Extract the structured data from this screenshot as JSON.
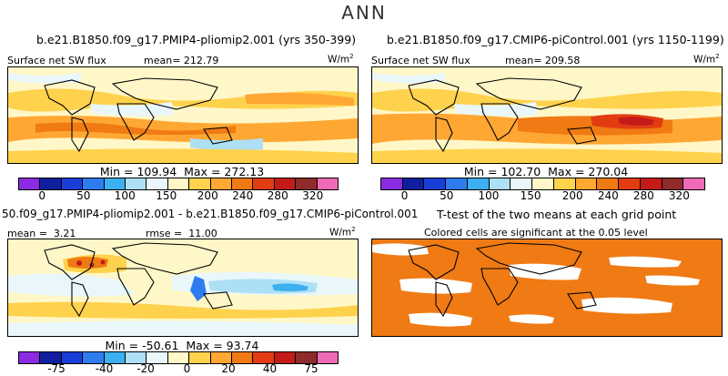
{
  "season": "ANN",
  "panels": {
    "top_left": {
      "case": "b.e21.B1850.f09_g17.PMIP4-pliomip2.001 (yrs 350-399)",
      "variable": "Surface net SW flux",
      "mean_label": "mean=",
      "mean": "212.79",
      "units_base": "W/m",
      "units_exp": "2",
      "min_label": "Min =",
      "min": "109.94",
      "max_label": "Max =",
      "max": "272.13"
    },
    "top_right": {
      "case": "b.e21.B1850.f09_g17.CMIP6-piControl.001 (yrs 1150-1199)",
      "variable": "Surface net SW flux",
      "mean_label": "mean=",
      "mean": "209.58",
      "units_base": "W/m",
      "units_exp": "2",
      "min_label": "Min =",
      "min": "102.70",
      "max_label": "Max =",
      "max": "270.04"
    },
    "bottom_left": {
      "case": "50.f09_g17.PMIP4-pliomip2.001 - b.e21.B1850.f09_g17.CMIP6-piControl.001",
      "mean_label": "mean =",
      "mean": "3.21",
      "rmse_label": "rmse =",
      "rmse": "11.00",
      "units_base": "W/m",
      "units_exp": "2",
      "min_label": "Min =",
      "min": "-50.61",
      "max_label": "Max =",
      "max": "93.74"
    },
    "bottom_right": {
      "title": "T-test of the two means at each grid point",
      "subtitle": "Colored cells are significant at the 0.05 level"
    }
  },
  "colorbar_abs": {
    "ticks": [
      "0",
      "50",
      "100",
      "150",
      "200",
      "240",
      "280",
      "320"
    ],
    "colors": [
      "#8b2be2",
      "#0f1fa0",
      "#1a3ed8",
      "#2e7df0",
      "#3cb0f0",
      "#aee0f5",
      "#e9f7fb",
      "#fff7c7",
      "#ffd24d",
      "#ffa733",
      "#f07a13",
      "#e33b12",
      "#c41a1a",
      "#8f2b2b",
      "#f06bb5"
    ]
  },
  "colorbar_diff": {
    "ticks": [
      "-75",
      "-40",
      "-20",
      "0",
      "20",
      "40",
      "75"
    ],
    "colors": [
      "#8b2be2",
      "#0f1fa0",
      "#1a3ed8",
      "#2e7df0",
      "#3cb0f0",
      "#aee0f5",
      "#e9f7fb",
      "#fff7c7",
      "#ffd24d",
      "#ffa733",
      "#f07a13",
      "#e33b12",
      "#c41a1a",
      "#8f2b2b",
      "#f06bb5"
    ]
  },
  "ttest_color": "#f07a13"
}
